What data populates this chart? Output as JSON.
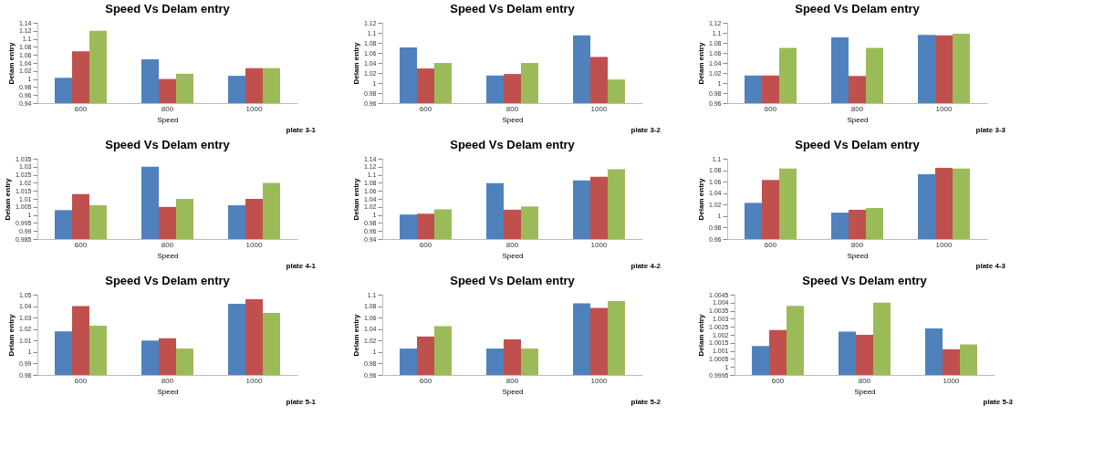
{
  "chart_data": [
    {
      "type": "bar",
      "title": "Speed Vs Delam entry",
      "xlabel": "Speed",
      "ylabel": "Delam entry",
      "categories": [
        "600",
        "800",
        "1000"
      ],
      "series": [
        {
          "color": "#4f81bd",
          "values": [
            1.003,
            1.049,
            1.008
          ]
        },
        {
          "color": "#c0504d",
          "values": [
            1.069,
            1.0,
            1.027
          ]
        },
        {
          "color": "#9bbb59",
          "values": [
            1.12,
            1.013,
            1.027
          ]
        }
      ],
      "ylim": [
        0.94,
        1.14
      ],
      "yticks": [
        0.94,
        0.96,
        0.98,
        1,
        1.02,
        1.04,
        1.06,
        1.08,
        1.1,
        1.12,
        1.14
      ],
      "grid": false,
      "annotations": [
        "plate 3-1"
      ]
    },
    {
      "type": "bar",
      "title": "Speed Vs Delam entry",
      "xlabel": "Speed",
      "ylabel": "Delam entry",
      "categories": [
        "600",
        "800",
        "1000"
      ],
      "series": [
        {
          "color": "#4f81bd",
          "values": [
            1.071,
            1.015,
            1.095
          ]
        },
        {
          "color": "#c0504d",
          "values": [
            1.029,
            1.018,
            1.052
          ]
        },
        {
          "color": "#9bbb59",
          "values": [
            1.04,
            1.04,
            1.007
          ]
        }
      ],
      "ylim": [
        0.96,
        1.12
      ],
      "yticks": [
        0.96,
        0.98,
        1,
        1.02,
        1.04,
        1.06,
        1.08,
        1.1,
        1.12
      ],
      "grid": false,
      "annotations": [
        "plate 3-2"
      ]
    },
    {
      "type": "bar",
      "title": "Speed Vs Delam entry",
      "xlabel": "Speed",
      "ylabel": "Delam entry",
      "categories": [
        "600",
        "800",
        "1000"
      ],
      "series": [
        {
          "color": "#4f81bd",
          "values": [
            1.015,
            1.091,
            1.096
          ]
        },
        {
          "color": "#c0504d",
          "values": [
            1.015,
            1.014,
            1.095
          ]
        },
        {
          "color": "#9bbb59",
          "values": [
            1.07,
            1.07,
            1.098
          ]
        }
      ],
      "ylim": [
        0.96,
        1.12
      ],
      "yticks": [
        0.96,
        0.98,
        1,
        1.02,
        1.04,
        1.06,
        1.08,
        1.1,
        1.12
      ],
      "grid": false,
      "annotations": [
        "plate 3-3"
      ]
    },
    {
      "type": "bar",
      "title": "Speed Vs Delam entry",
      "xlabel": "Speed",
      "ylabel": "Delam entry",
      "categories": [
        "600",
        "800",
        "1000"
      ],
      "series": [
        {
          "color": "#4f81bd",
          "values": [
            1.003,
            1.03,
            1.006
          ]
        },
        {
          "color": "#c0504d",
          "values": [
            1.013,
            1.005,
            1.01
          ]
        },
        {
          "color": "#9bbb59",
          "values": [
            1.006,
            1.01,
            1.02
          ]
        }
      ],
      "ylim": [
        0.985,
        1.035
      ],
      "yticks": [
        0.985,
        0.99,
        0.995,
        1,
        1.005,
        1.01,
        1.015,
        1.02,
        1.025,
        1.03,
        1.035
      ],
      "grid": false,
      "annotations": [
        "plate 4-1"
      ]
    },
    {
      "type": "bar",
      "title": "Speed Vs Delam entry",
      "xlabel": "Speed",
      "ylabel": "Delam entry",
      "categories": [
        "600",
        "800",
        "1000"
      ],
      "series": [
        {
          "color": "#4f81bd",
          "values": [
            1.001,
            1.079,
            1.086
          ]
        },
        {
          "color": "#c0504d",
          "values": [
            1.003,
            1.013,
            1.095
          ]
        },
        {
          "color": "#9bbb59",
          "values": [
            1.014,
            1.021,
            1.114
          ]
        }
      ],
      "ylim": [
        0.94,
        1.14
      ],
      "yticks": [
        0.94,
        0.96,
        0.98,
        1,
        1.02,
        1.04,
        1.06,
        1.08,
        1.1,
        1.12,
        1.14
      ],
      "grid": false,
      "annotations": [
        "plate 4-2"
      ]
    },
    {
      "type": "bar",
      "title": "Speed Vs Delam entry",
      "xlabel": "Speed",
      "ylabel": "Delam entry",
      "categories": [
        "600",
        "800",
        "1000"
      ],
      "series": [
        {
          "color": "#4f81bd",
          "values": [
            1.023,
            1.006,
            1.073
          ]
        },
        {
          "color": "#c0504d",
          "values": [
            1.063,
            1.011,
            1.084
          ]
        },
        {
          "color": "#9bbb59",
          "values": [
            1.083,
            1.014,
            1.083
          ]
        }
      ],
      "ylim": [
        0.96,
        1.1
      ],
      "yticks": [
        0.96,
        0.98,
        1,
        1.02,
        1.04,
        1.06,
        1.08,
        1.1
      ],
      "grid": false,
      "annotations": [
        "plate 4-3"
      ]
    },
    {
      "type": "bar",
      "title": "Speed Vs Delam entry",
      "xlabel": "Speed",
      "ylabel": "Delam entry",
      "categories": [
        "600",
        "800",
        "1000"
      ],
      "series": [
        {
          "color": "#4f81bd",
          "values": [
            1.018,
            1.01,
            1.042
          ]
        },
        {
          "color": "#c0504d",
          "values": [
            1.04,
            1.012,
            1.046
          ]
        },
        {
          "color": "#9bbb59",
          "values": [
            1.023,
            1.003,
            1.034
          ]
        }
      ],
      "ylim": [
        0.98,
        1.05
      ],
      "yticks": [
        0.98,
        0.99,
        1,
        1.01,
        1.02,
        1.03,
        1.04,
        1.05
      ],
      "grid": false,
      "annotations": [
        "plate 5-1"
      ]
    },
    {
      "type": "bar",
      "title": "Speed Vs Delam entry",
      "xlabel": "Speed",
      "ylabel": "Delam entry",
      "categories": [
        "600",
        "800",
        "1000"
      ],
      "series": [
        {
          "color": "#4f81bd",
          "values": [
            1.006,
            1.006,
            1.085
          ]
        },
        {
          "color": "#c0504d",
          "values": [
            1.027,
            1.022,
            1.077
          ]
        },
        {
          "color": "#9bbb59",
          "values": [
            1.045,
            1.006,
            1.089
          ]
        }
      ],
      "ylim": [
        0.96,
        1.1
      ],
      "yticks": [
        0.96,
        0.98,
        1,
        1.02,
        1.04,
        1.06,
        1.08,
        1.1
      ],
      "grid": false,
      "annotations": [
        "plate 5-2"
      ]
    },
    {
      "type": "bar",
      "title": "Speed Vs Delam entry",
      "xlabel": "Speed",
      "ylabel": "Delam entry",
      "categories": [
        "600",
        "800",
        "1000"
      ],
      "series": [
        {
          "color": "#4f81bd",
          "values": [
            1.0013,
            1.0022,
            1.0024
          ]
        },
        {
          "color": "#c0504d",
          "values": [
            1.0023,
            1.002,
            1.0011
          ]
        },
        {
          "color": "#9bbb59",
          "values": [
            1.0038,
            1.004,
            1.0014
          ]
        }
      ],
      "ylim": [
        0.9995,
        1.0045
      ],
      "yticks": [
        0.9995,
        1,
        1.0005,
        1.001,
        1.0015,
        1.002,
        1.0025,
        1.003,
        1.0035,
        1.004,
        1.0045
      ],
      "grid": false,
      "annotations": [
        "plate 5-3"
      ]
    }
  ]
}
